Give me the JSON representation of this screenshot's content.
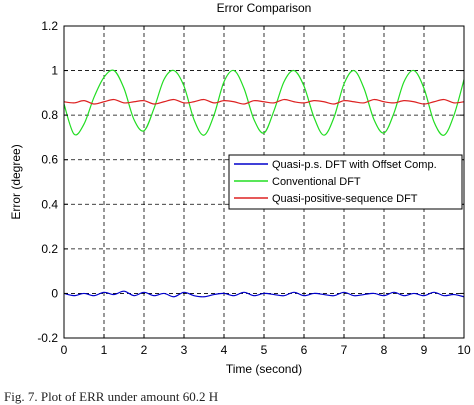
{
  "caption": "Fig. 7. Plot of ERR under amount 60.2 H",
  "chart_data": {
    "type": "line",
    "title": "Error Comparison",
    "xlabel": "Time (second)",
    "ylabel": "Error (degree)",
    "xlim": [
      0,
      10
    ],
    "ylim": [
      -0.2,
      1.2
    ],
    "xticks": [
      0,
      1,
      2,
      3,
      4,
      5,
      6,
      7,
      8,
      9,
      10
    ],
    "yticks": [
      -0.2,
      0,
      0.2,
      0.4,
      0.6,
      0.8,
      1,
      1.2
    ],
    "xtick_labels": [
      "0",
      "1",
      "2",
      "3",
      "4",
      "5",
      "6",
      "7",
      "8",
      "9",
      "10"
    ],
    "ytick_labels": [
      "-0.2",
      "0",
      "0.2",
      "0.4",
      "0.6",
      "0.8",
      "1",
      "1.2"
    ],
    "grid": true,
    "grid_style": "dashed",
    "legend_position": "center-right",
    "series": [
      {
        "name": "Quasi-p.s. DFT with Offset Comp.",
        "color": "#0000cc",
        "x": [
          0,
          0.25,
          0.5,
          0.75,
          1,
          1.25,
          1.5,
          1.75,
          2,
          2.25,
          2.5,
          2.75,
          3,
          3.25,
          3.5,
          3.75,
          4,
          4.25,
          4.5,
          4.75,
          5,
          5.25,
          5.5,
          5.75,
          6,
          6.25,
          6.5,
          6.75,
          7,
          7.25,
          7.5,
          7.75,
          8,
          8.25,
          8.5,
          8.75,
          9,
          9.25,
          9.5,
          9.75,
          10
        ],
        "y": [
          0,
          -0.01,
          0,
          -0.01,
          0.005,
          -0.005,
          0.01,
          -0.01,
          0.005,
          -0.01,
          0,
          -0.015,
          0.005,
          -0.01,
          -0.015,
          -0.005,
          0,
          -0.01,
          0.005,
          -0.01,
          0,
          -0.005,
          -0.01,
          0.005,
          -0.01,
          0,
          -0.005,
          -0.01,
          0.005,
          -0.01,
          -0.005,
          0,
          -0.01,
          0.005,
          -0.01,
          0,
          -0.01,
          0.005,
          -0.01,
          -0.005,
          -0.015
        ]
      },
      {
        "name": "Conventional DFT",
        "color": "#22dd22",
        "x": [
          0,
          0.25,
          0.5,
          0.75,
          1,
          1.25,
          1.5,
          1.75,
          2,
          2.25,
          2.5,
          2.75,
          3,
          3.25,
          3.5,
          3.75,
          4,
          4.25,
          4.5,
          4.75,
          5,
          5.25,
          5.5,
          5.75,
          6,
          6.25,
          6.5,
          6.75,
          7,
          7.25,
          7.5,
          7.75,
          8,
          8.25,
          8.5,
          8.75,
          9,
          9.25,
          9.5,
          9.75,
          10
        ],
        "y": [
          0.85,
          0.715,
          0.76,
          0.88,
          0.97,
          1.0,
          0.92,
          0.78,
          0.73,
          0.83,
          0.96,
          1.0,
          0.93,
          0.78,
          0.71,
          0.8,
          0.95,
          1.0,
          0.92,
          0.78,
          0.72,
          0.82,
          0.95,
          1.0,
          0.93,
          0.79,
          0.71,
          0.79,
          0.94,
          1.0,
          0.92,
          0.78,
          0.72,
          0.81,
          0.95,
          1.0,
          0.92,
          0.77,
          0.71,
          0.8,
          0.96
        ]
      },
      {
        "name": "Quasi-positive-sequence DFT",
        "color": "#dd2222",
        "x": [
          0,
          0.25,
          0.5,
          0.75,
          1,
          1.25,
          1.5,
          1.75,
          2,
          2.25,
          2.5,
          2.75,
          3,
          3.25,
          3.5,
          3.75,
          4,
          4.25,
          4.5,
          4.75,
          5,
          5.25,
          5.5,
          5.75,
          6,
          6.25,
          6.5,
          6.75,
          7,
          7.25,
          7.5,
          7.75,
          8,
          8.25,
          8.5,
          8.75,
          9,
          9.25,
          9.5,
          9.75,
          10
        ],
        "y": [
          0.86,
          0.855,
          0.865,
          0.85,
          0.86,
          0.87,
          0.855,
          0.86,
          0.865,
          0.85,
          0.86,
          0.87,
          0.855,
          0.86,
          0.87,
          0.855,
          0.865,
          0.86,
          0.85,
          0.865,
          0.86,
          0.855,
          0.87,
          0.86,
          0.855,
          0.865,
          0.86,
          0.85,
          0.865,
          0.86,
          0.855,
          0.87,
          0.86,
          0.855,
          0.865,
          0.86,
          0.85,
          0.86,
          0.87,
          0.855,
          0.86
        ]
      }
    ]
  }
}
